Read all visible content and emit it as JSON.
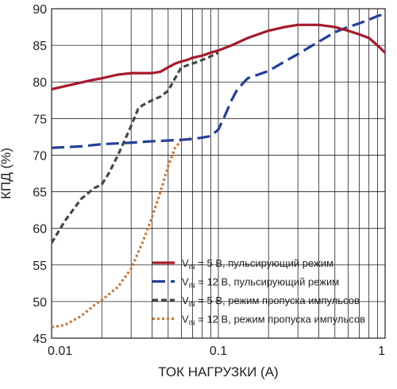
{
  "chart_data": {
    "type": "line",
    "xlabel": "ТОК НАГРУЗКИ (А)",
    "ylabel": "КПД (%)",
    "x_scale": "log",
    "xlim": [
      0.01,
      1
    ],
    "ylim": [
      45,
      90
    ],
    "x_ticks": [
      {
        "value": 0.01,
        "label": "0.01"
      },
      {
        "value": 0.1,
        "label": "0.1"
      },
      {
        "value": 1,
        "label": "1"
      }
    ],
    "y_ticks": [
      {
        "value": 45,
        "label": "45"
      },
      {
        "value": 50,
        "label": "50"
      },
      {
        "value": 55,
        "label": "55"
      },
      {
        "value": 60,
        "label": "60"
      },
      {
        "value": 65,
        "label": "65"
      },
      {
        "value": 70,
        "label": "70"
      },
      {
        "value": 75,
        "label": "75"
      },
      {
        "value": 80,
        "label": "80"
      },
      {
        "value": 85,
        "label": "85"
      },
      {
        "value": 90,
        "label": "90"
      }
    ],
    "grid": true,
    "legend_position": "bottom-right",
    "series": [
      {
        "legend_main": "V",
        "legend_sub": "IN",
        "legend_rest": " = 5 В, пульсирующий режим",
        "color": "#a6192e",
        "dash": "solid",
        "x": [
          0.01,
          0.013,
          0.017,
          0.02,
          0.025,
          0.03,
          0.035,
          0.04,
          0.045,
          0.05,
          0.055,
          0.06,
          0.065,
          0.07,
          0.08,
          0.09,
          0.1,
          0.12,
          0.15,
          0.2,
          0.25,
          0.3,
          0.35,
          0.4,
          0.5,
          0.6,
          0.7,
          0.8,
          0.9,
          1.0
        ],
        "y": [
          79,
          79.6,
          80.2,
          80.5,
          81.0,
          81.2,
          81.2,
          81.2,
          81.4,
          82.0,
          82.5,
          82.8,
          83.0,
          83.3,
          83.6,
          84.0,
          84.3,
          85.0,
          86.0,
          87.0,
          87.5,
          87.8,
          87.8,
          87.8,
          87.5,
          87.0,
          86.5,
          86.0,
          85.0,
          84.0
        ]
      },
      {
        "legend_main": "V",
        "legend_sub": "IN",
        "legend_rest": " = 12 В, пульсирующий режим",
        "color": "#243f9a",
        "dash": "long-dash",
        "x": [
          0.01,
          0.015,
          0.02,
          0.03,
          0.04,
          0.05,
          0.06,
          0.07,
          0.08,
          0.09,
          0.1,
          0.11,
          0.12,
          0.13,
          0.15,
          0.2,
          0.25,
          0.3,
          0.4,
          0.5,
          0.6,
          0.7,
          0.8,
          0.9,
          1.0
        ],
        "y": [
          71,
          71.2,
          71.5,
          71.7,
          71.9,
          72.0,
          72.1,
          72.2,
          72.4,
          72.6,
          73.5,
          75.5,
          77.5,
          79.0,
          80.5,
          81.5,
          82.8,
          83.8,
          85.5,
          86.8,
          87.5,
          88.0,
          88.5,
          89.0,
          89.3
        ]
      },
      {
        "legend_main": "V",
        "legend_sub": "IN",
        "legend_rest": " = 5 В, режим пропуска импульсов",
        "color": "#3e4c42",
        "dash": "short-dash",
        "x": [
          0.01,
          0.012,
          0.015,
          0.018,
          0.02,
          0.022,
          0.025,
          0.028,
          0.03,
          0.033,
          0.035,
          0.04,
          0.045,
          0.05,
          0.055,
          0.06,
          0.07,
          0.08,
          0.09,
          0.1
        ],
        "y": [
          58,
          61,
          64,
          65.5,
          66,
          67.5,
          70,
          72.5,
          74,
          76.3,
          76.8,
          77.5,
          78.0,
          78.8,
          80.5,
          82.0,
          82.5,
          83.0,
          83.5,
          84.0
        ]
      },
      {
        "legend_main": "V",
        "legend_sub": "IN",
        "legend_rest": " = 12 В, режим пропуска импульсов",
        "color": "#cc7a3a",
        "dash": "dotted",
        "x": [
          0.01,
          0.012,
          0.015,
          0.018,
          0.02,
          0.025,
          0.03,
          0.035,
          0.04,
          0.045,
          0.05,
          0.055,
          0.06,
          0.065,
          0.07
        ],
        "y": [
          46.5,
          46.8,
          48.0,
          49.5,
          50.2,
          52.0,
          54.5,
          58.0,
          61.5,
          65.0,
          68.5,
          71.0,
          72.0,
          72.2,
          72.3
        ]
      }
    ]
  }
}
